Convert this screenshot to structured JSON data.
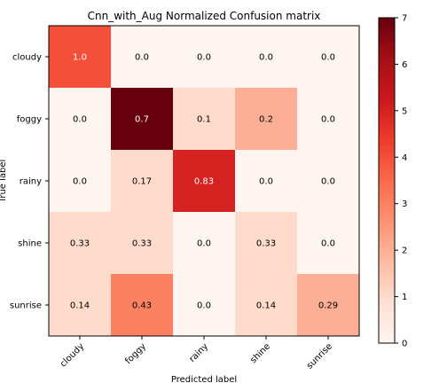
{
  "chart_data": {
    "type": "heatmap",
    "title": "Cnn_with_Aug  Normalized Confusion matrix",
    "xlabel": "Predicted label",
    "ylabel": "True label",
    "row_labels": [
      "cloudy",
      "foggy",
      "rainy",
      "shine",
      "sunrise"
    ],
    "col_labels": [
      "cloudy",
      "foggy",
      "rainy",
      "shine",
      "sunrise"
    ],
    "cell_text": [
      [
        "1.0",
        "0.0",
        "0.0",
        "0.0",
        "0.0"
      ],
      [
        "0.0",
        "0.7",
        "0.1",
        "0.2",
        "0.0"
      ],
      [
        "0.0",
        "0.17",
        "0.83",
        "0.0",
        "0.0"
      ],
      [
        "0.33",
        "0.33",
        "0.0",
        "0.33",
        "0.0"
      ],
      [
        "0.14",
        "0.43",
        "0.0",
        "0.14",
        "0.29"
      ]
    ],
    "color_counts": [
      [
        4,
        0,
        0,
        0,
        0
      ],
      [
        0,
        7,
        1,
        2,
        0
      ],
      [
        0,
        1,
        5,
        0,
        0
      ],
      [
        1,
        1,
        0,
        1,
        0
      ],
      [
        1,
        3,
        0,
        1,
        2
      ]
    ],
    "colorbar": {
      "min": 0,
      "max": 7,
      "ticks": [
        "0",
        "1",
        "2",
        "3",
        "4",
        "5",
        "6",
        "7"
      ]
    },
    "colormap": "Reds",
    "colormap_stops": [
      "#fff5f0",
      "#fee0d2",
      "#fcbba1",
      "#fc9272",
      "#fb6a4a",
      "#ef3b2c",
      "#cb181d",
      "#a50f15",
      "#67000d"
    ],
    "text_colors": {
      "dark": "#000000",
      "light": "#ffffff"
    }
  }
}
